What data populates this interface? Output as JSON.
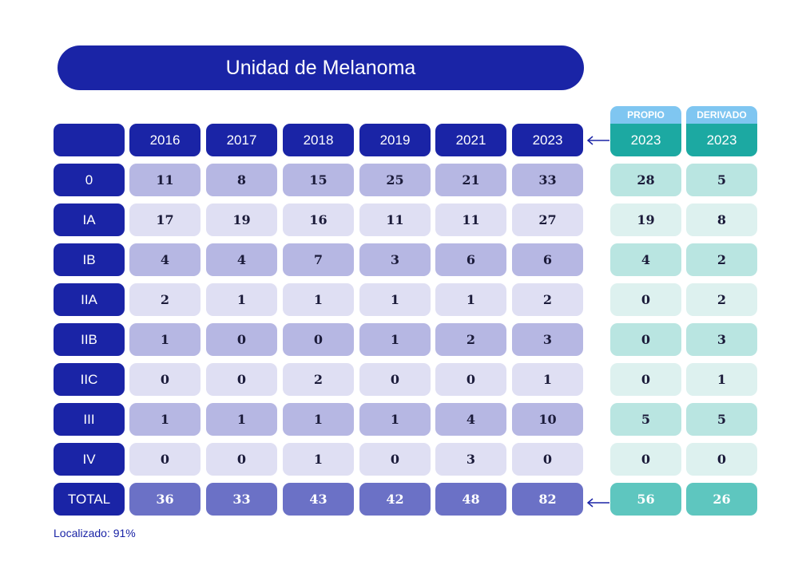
{
  "title": "Unidad de Melanoma",
  "footnote": "Localizado: 91%",
  "chart_data": {
    "type": "table",
    "title": "Unidad de Melanoma",
    "columns": [
      "2016",
      "2017",
      "2018",
      "2019",
      "2021",
      "2023"
    ],
    "rows": [
      {
        "label": "0",
        "values": [
          11,
          8,
          15,
          25,
          21,
          33
        ]
      },
      {
        "label": "IA",
        "values": [
          17,
          19,
          16,
          11,
          11,
          27
        ]
      },
      {
        "label": "IB",
        "values": [
          4,
          4,
          7,
          3,
          6,
          6
        ]
      },
      {
        "label": "IIA",
        "values": [
          2,
          1,
          1,
          1,
          1,
          2
        ]
      },
      {
        "label": "IIB",
        "values": [
          1,
          0,
          0,
          1,
          2,
          3
        ]
      },
      {
        "label": "IIC",
        "values": [
          0,
          0,
          2,
          0,
          0,
          1
        ]
      },
      {
        "label": "III",
        "values": [
          1,
          1,
          1,
          1,
          4,
          10
        ]
      },
      {
        "label": "IV",
        "values": [
          0,
          0,
          1,
          0,
          3,
          0
        ]
      },
      {
        "label": "TOTAL",
        "values": [
          36,
          33,
          43,
          42,
          48,
          82
        ]
      }
    ],
    "breakdown_2023": {
      "groups": [
        {
          "name": "PROPIO",
          "year": "2023",
          "values": [
            28,
            19,
            4,
            0,
            0,
            0,
            5,
            0,
            56
          ]
        },
        {
          "name": "DERIVADO",
          "year": "2023",
          "values": [
            5,
            8,
            2,
            2,
            3,
            1,
            5,
            0,
            26
          ]
        }
      ]
    }
  },
  "colors": {
    "navy": "#1a24a6",
    "cell_dark": "#b6b7e3",
    "cell_light": "#dfdff3",
    "total": "#6b71c6",
    "teal_dark": "#b9e5e1",
    "teal_light": "#ddf1ef",
    "teal_total": "#5ec6bf",
    "teal_header": "#1ca9a2",
    "sky_header": "#7fc6f1"
  }
}
